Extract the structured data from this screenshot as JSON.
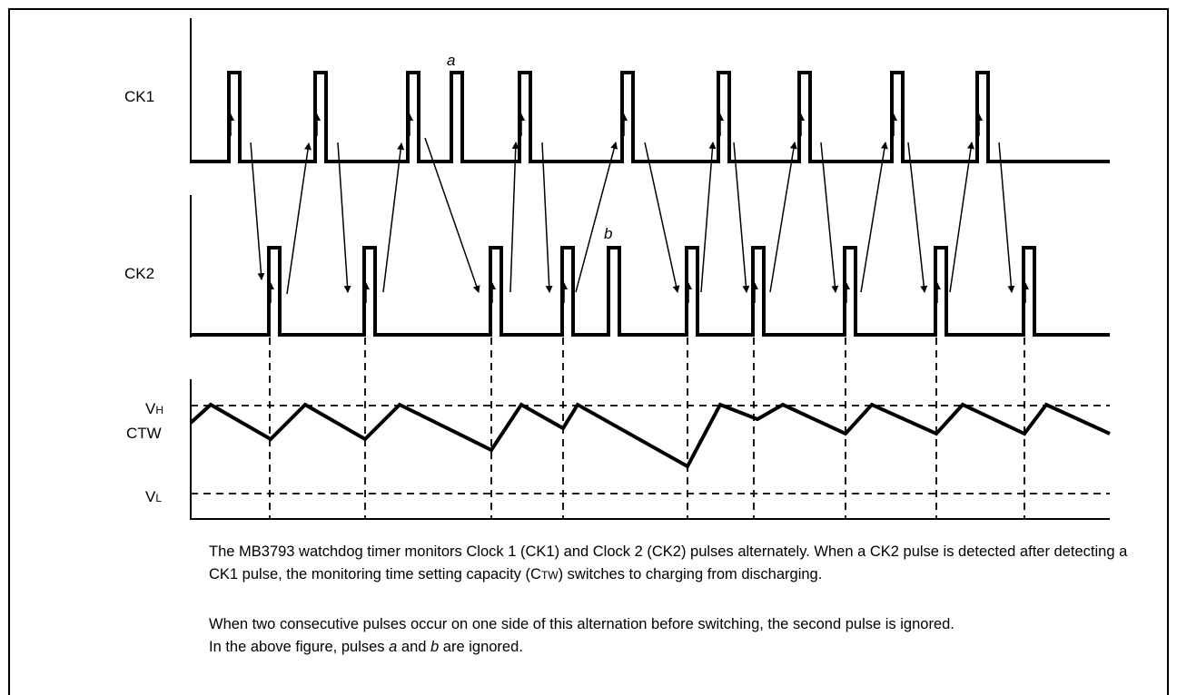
{
  "labels": {
    "ck1": "CK1",
    "ck2": "CK2",
    "ctw": "CTW",
    "vh_main": "V",
    "vh_sub": "H",
    "vl_main": "V",
    "vl_sub": "L",
    "pulse_a": "a",
    "pulse_b": "b"
  },
  "caption": {
    "p1_before": "The MB3793 watchdog timer monitors Clock 1 (CK1) and Clock 2 (CK2) pulses alternately.  When a CK2 pulse is detected after detecting a CK1 pulse, the monitoring time setting capacity (",
    "p1_c": "C",
    "p1_tw": "TW",
    "p1_after": ") switches to charging from discharging.",
    "p2_line1": "When two consecutive pulses occur on one side of this alternation before switching, the second pulse is ignored.",
    "p2_before": "In the above figure, pulses ",
    "p2_a": "a",
    "p2_and": " and ",
    "p2_b": "b",
    "p2_after": " are ignored."
  }
}
